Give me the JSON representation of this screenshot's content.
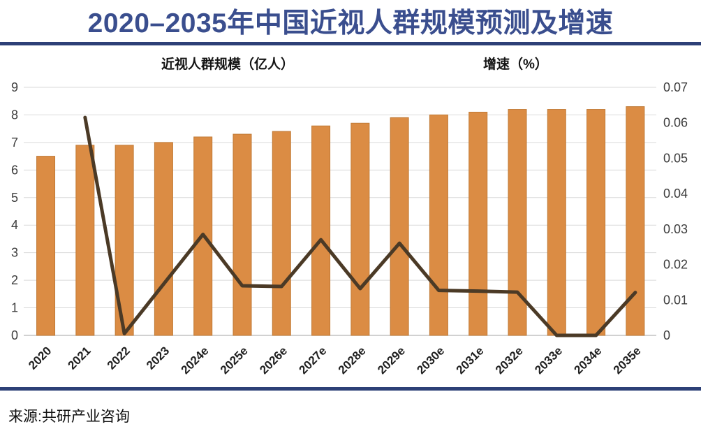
{
  "title": "2020–2035年中国近视人群规模预测及增速",
  "source": "来源:共研产业咨询",
  "legend": {
    "bars": {
      "label": "近视人群规模（亿人）",
      "swatch": "orange-bar-swatch"
    },
    "growth": {
      "label": "增速（%）",
      "swatch": "brown-line-swatch"
    }
  },
  "colors": {
    "bar": "#DB8C44",
    "bar_border": "#C07A36",
    "line": "#4B3A26",
    "grid": "#D9D9D9",
    "axis": "#C2C2C2",
    "tick_label": "#3D3D3D",
    "x_label": "#1F1F1F",
    "accent_navy": "#2D4077",
    "title_blue": "#3A4E8E"
  },
  "chart_data": {
    "type": "bar",
    "subtype": "bar-line-combo",
    "title": "2020–2035年中国近视人群规模预测及增速",
    "categories": [
      "2020",
      "2021",
      "2022",
      "2023",
      "2024e",
      "2025e",
      "2026e",
      "2027e",
      "2028e",
      "2029e",
      "2030e",
      "2031e",
      "2032e",
      "2033e",
      "2034e",
      "2035e"
    ],
    "series": [
      {
        "name": "近视人群规模（亿人）",
        "type": "bar",
        "axis": "left",
        "values": [
          6.5,
          6.9,
          6.9,
          7.0,
          7.2,
          7.3,
          7.4,
          7.6,
          7.7,
          7.9,
          8.0,
          8.1,
          8.2,
          8.2,
          8.2,
          8.3
        ]
      },
      {
        "name": "增速（%）",
        "type": "line",
        "axis": "right",
        "start_index": 1,
        "values": [
          0.0615,
          0.0005,
          0.0145,
          0.0285,
          0.014,
          0.0138,
          0.027,
          0.0132,
          0.026,
          0.0127,
          0.0125,
          0.0122,
          0,
          0,
          0.0121
        ]
      }
    ],
    "left_axis": {
      "min": 0,
      "max": 9,
      "tick_labels": [
        "0",
        "1",
        "2",
        "3",
        "4",
        "5",
        "6",
        "7",
        "8",
        "9"
      ]
    },
    "right_axis": {
      "min": 0,
      "max": 0.07,
      "tick_labels": [
        "0",
        "0.01",
        "0.02",
        "0.03",
        "0.04",
        "0.05",
        "0.06",
        "0.07"
      ]
    },
    "grid": true,
    "legend_position": "top",
    "x_label_rotation": -45
  }
}
